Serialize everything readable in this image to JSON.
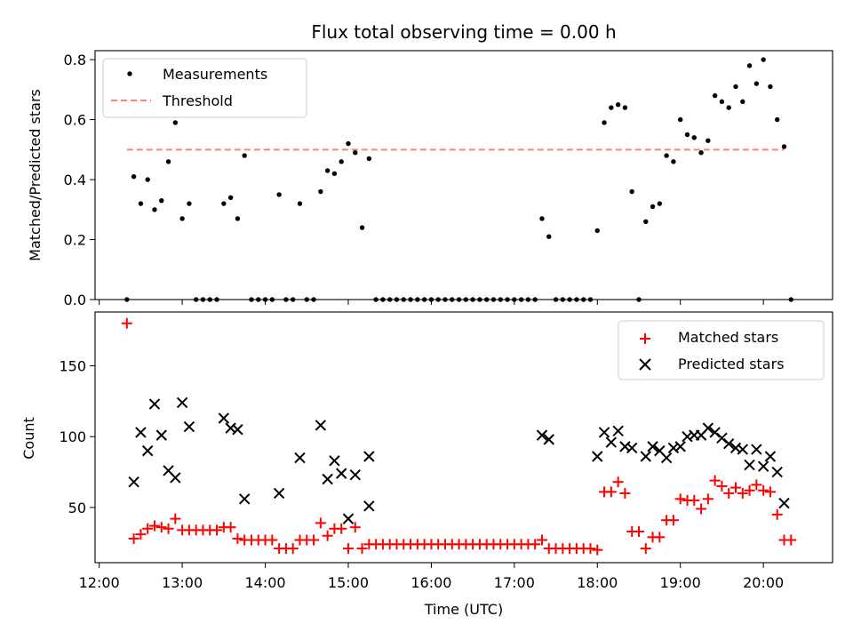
{
  "chart_data": [
    {
      "type": "scatter",
      "title": "Flux total observing time = 0.00 h",
      "xlabel": "",
      "ylabel": "Matched/Predicted stars",
      "xlim": [
        "11:57",
        "20:50"
      ],
      "ylim": [
        0,
        0.83
      ],
      "yticks": [
        0,
        0.2,
        0.4,
        0.6,
        0.8
      ],
      "ytick_labels": [
        "0.0",
        "0.2",
        "0.4",
        "0.6",
        "0.8"
      ],
      "legend_position": "top-left",
      "grid": false,
      "series": [
        {
          "name": "Measurements",
          "color": "#000000",
          "marker": "dot",
          "points": [
            [
              "12:20",
              0.0
            ],
            [
              "12:25",
              0.41
            ],
            [
              "12:30",
              0.32
            ],
            [
              "12:35",
              0.4
            ],
            [
              "12:40",
              0.3
            ],
            [
              "12:45",
              0.33
            ],
            [
              "12:50",
              0.46
            ],
            [
              "12:55",
              0.59
            ],
            [
              "13:00",
              0.27
            ],
            [
              "13:05",
              0.32
            ],
            [
              "13:10",
              0.0
            ],
            [
              "13:15",
              0.0
            ],
            [
              "13:20",
              0.0
            ],
            [
              "13:25",
              0.0
            ],
            [
              "13:30",
              0.32
            ],
            [
              "13:35",
              0.34
            ],
            [
              "13:40",
              0.27
            ],
            [
              "13:45",
              0.48
            ],
            [
              "13:50",
              0.0
            ],
            [
              "13:55",
              0.0
            ],
            [
              "14:00",
              0.0
            ],
            [
              "14:05",
              0.0
            ],
            [
              "14:10",
              0.35
            ],
            [
              "14:15",
              0.0
            ],
            [
              "14:20",
              0.0
            ],
            [
              "14:25",
              0.32
            ],
            [
              "14:30",
              0.0
            ],
            [
              "14:35",
              0.0
            ],
            [
              "14:40",
              0.36
            ],
            [
              "14:45",
              0.43
            ],
            [
              "14:50",
              0.42
            ],
            [
              "14:55",
              0.46
            ],
            [
              "15:00",
              0.52
            ],
            [
              "15:05",
              0.49
            ],
            [
              "15:10",
              0.24
            ],
            [
              "15:15",
              0.47
            ],
            [
              "15:20",
              0.0
            ],
            [
              "15:25",
              0.0
            ],
            [
              "15:30",
              0.0
            ],
            [
              "15:35",
              0.0
            ],
            [
              "15:40",
              0.0
            ],
            [
              "15:45",
              0.0
            ],
            [
              "15:50",
              0.0
            ],
            [
              "15:55",
              0.0
            ],
            [
              "16:00",
              0.0
            ],
            [
              "16:05",
              0.0
            ],
            [
              "16:10",
              0.0
            ],
            [
              "16:15",
              0.0
            ],
            [
              "16:20",
              0.0
            ],
            [
              "16:25",
              0.0
            ],
            [
              "16:30",
              0.0
            ],
            [
              "16:35",
              0.0
            ],
            [
              "16:40",
              0.0
            ],
            [
              "16:45",
              0.0
            ],
            [
              "16:50",
              0.0
            ],
            [
              "16:55",
              0.0
            ],
            [
              "17:00",
              0.0
            ],
            [
              "17:05",
              0.0
            ],
            [
              "17:10",
              0.0
            ],
            [
              "17:15",
              0.0
            ],
            [
              "17:20",
              0.27
            ],
            [
              "17:25",
              0.21
            ],
            [
              "17:30",
              0.0
            ],
            [
              "17:35",
              0.0
            ],
            [
              "17:40",
              0.0
            ],
            [
              "17:45",
              0.0
            ],
            [
              "17:50",
              0.0
            ],
            [
              "17:55",
              0.0
            ],
            [
              "18:00",
              0.23
            ],
            [
              "18:05",
              0.59
            ],
            [
              "18:10",
              0.64
            ],
            [
              "18:15",
              0.65
            ],
            [
              "18:20",
              0.64
            ],
            [
              "18:25",
              0.36
            ],
            [
              "18:30",
              0.0
            ],
            [
              "18:35",
              0.26
            ],
            [
              "18:40",
              0.31
            ],
            [
              "18:45",
              0.32
            ],
            [
              "18:50",
              0.48
            ],
            [
              "18:55",
              0.46
            ],
            [
              "19:00",
              0.6
            ],
            [
              "19:05",
              0.55
            ],
            [
              "19:10",
              0.54
            ],
            [
              "19:15",
              0.49
            ],
            [
              "19:20",
              0.53
            ],
            [
              "19:25",
              0.68
            ],
            [
              "19:30",
              0.66
            ],
            [
              "19:35",
              0.64
            ],
            [
              "19:40",
              0.71
            ],
            [
              "19:45",
              0.66
            ],
            [
              "19:50",
              0.78
            ],
            [
              "19:55",
              0.72
            ],
            [
              "20:00",
              0.8
            ],
            [
              "20:05",
              0.71
            ],
            [
              "20:10",
              0.6
            ],
            [
              "20:15",
              0.51
            ],
            [
              "20:20",
              0.0
            ]
          ]
        },
        {
          "name": "Threshold",
          "color": "#ff8080",
          "style": "dashed",
          "points": [
            [
              "12:20",
              0.5
            ],
            [
              "20:15",
              0.5
            ]
          ]
        }
      ]
    },
    {
      "type": "scatter",
      "title": "",
      "xlabel": "Time (UTC)",
      "ylabel": "Count",
      "xlim": [
        "11:57",
        "20:50"
      ],
      "ylim": [
        11,
        188
      ],
      "yticks": [
        50,
        100,
        150
      ],
      "ytick_labels": [
        "50",
        "100",
        "150"
      ],
      "xticks": [
        "12:00",
        "13:00",
        "14:00",
        "15:00",
        "16:00",
        "17:00",
        "18:00",
        "19:00",
        "20:00"
      ],
      "legend_position": "top-right",
      "grid": false,
      "series": [
        {
          "name": "Matched stars",
          "color": "#ff0000",
          "marker": "plus",
          "points": [
            [
              "12:20",
              180
            ],
            [
              "12:25",
              28
            ],
            [
              "12:30",
              31
            ],
            [
              "12:35",
              35
            ],
            [
              "12:40",
              37
            ],
            [
              "12:45",
              36
            ],
            [
              "12:50",
              35
            ],
            [
              "12:55",
              42
            ],
            [
              "13:00",
              34
            ],
            [
              "13:05",
              34
            ],
            [
              "13:10",
              34
            ],
            [
              "13:15",
              34
            ],
            [
              "13:20",
              34
            ],
            [
              "13:25",
              34
            ],
            [
              "13:30",
              36
            ],
            [
              "13:35",
              36
            ],
            [
              "13:40",
              28
            ],
            [
              "13:45",
              27
            ],
            [
              "13:50",
              27
            ],
            [
              "13:55",
              27
            ],
            [
              "14:00",
              27
            ],
            [
              "14:05",
              27
            ],
            [
              "14:10",
              21
            ],
            [
              "14:15",
              21
            ],
            [
              "14:20",
              21
            ],
            [
              "14:25",
              27
            ],
            [
              "14:30",
              27
            ],
            [
              "14:35",
              27
            ],
            [
              "14:40",
              39
            ],
            [
              "14:45",
              30
            ],
            [
              "14:50",
              35
            ],
            [
              "14:55",
              35
            ],
            [
              "15:00",
              21
            ],
            [
              "15:05",
              36
            ],
            [
              "15:10",
              21
            ],
            [
              "15:15",
              24
            ],
            [
              "15:20",
              24
            ],
            [
              "15:25",
              24
            ],
            [
              "15:30",
              24
            ],
            [
              "15:35",
              24
            ],
            [
              "15:40",
              24
            ],
            [
              "15:45",
              24
            ],
            [
              "15:50",
              24
            ],
            [
              "15:55",
              24
            ],
            [
              "16:00",
              24
            ],
            [
              "16:05",
              24
            ],
            [
              "16:10",
              24
            ],
            [
              "16:15",
              24
            ],
            [
              "16:20",
              24
            ],
            [
              "16:25",
              24
            ],
            [
              "16:30",
              24
            ],
            [
              "16:35",
              24
            ],
            [
              "16:40",
              24
            ],
            [
              "16:45",
              24
            ],
            [
              "16:50",
              24
            ],
            [
              "16:55",
              24
            ],
            [
              "17:00",
              24
            ],
            [
              "17:05",
              24
            ],
            [
              "17:10",
              24
            ],
            [
              "17:15",
              24
            ],
            [
              "17:20",
              27
            ],
            [
              "17:25",
              21
            ],
            [
              "17:30",
              21
            ],
            [
              "17:35",
              21
            ],
            [
              "17:40",
              21
            ],
            [
              "17:45",
              21
            ],
            [
              "17:50",
              21
            ],
            [
              "17:55",
              21
            ],
            [
              "18:00",
              20
            ],
            [
              "18:05",
              61
            ],
            [
              "18:10",
              61
            ],
            [
              "18:15",
              68
            ],
            [
              "18:20",
              60
            ],
            [
              "18:25",
              33
            ],
            [
              "18:30",
              33
            ],
            [
              "18:35",
              21
            ],
            [
              "18:40",
              29
            ],
            [
              "18:45",
              29
            ],
            [
              "18:50",
              41
            ],
            [
              "18:55",
              41
            ],
            [
              "19:00",
              56
            ],
            [
              "19:05",
              55
            ],
            [
              "19:10",
              55
            ],
            [
              "19:15",
              49
            ],
            [
              "19:20",
              56
            ],
            [
              "19:25",
              69
            ],
            [
              "19:30",
              65
            ],
            [
              "19:35",
              60
            ],
            [
              "19:40",
              64
            ],
            [
              "19:45",
              60
            ],
            [
              "19:50",
              62
            ],
            [
              "19:55",
              66
            ],
            [
              "20:00",
              62
            ],
            [
              "20:05",
              61
            ],
            [
              "20:10",
              45
            ],
            [
              "20:15",
              27
            ],
            [
              "20:20",
              27
            ]
          ]
        },
        {
          "name": "Predicted stars",
          "color": "#000000",
          "marker": "x",
          "points": [
            [
              "12:25",
              68
            ],
            [
              "12:30",
              103
            ],
            [
              "12:35",
              90
            ],
            [
              "12:40",
              123
            ],
            [
              "12:45",
              101
            ],
            [
              "12:50",
              76
            ],
            [
              "12:55",
              71
            ],
            [
              "13:00",
              124
            ],
            [
              "13:05",
              107
            ],
            [
              "13:30",
              113
            ],
            [
              "13:35",
              106
            ],
            [
              "13:40",
              105
            ],
            [
              "13:45",
              56
            ],
            [
              "14:10",
              60
            ],
            [
              "14:25",
              85
            ],
            [
              "14:40",
              108
            ],
            [
              "14:45",
              70
            ],
            [
              "14:50",
              83
            ],
            [
              "14:55",
              74
            ],
            [
              "15:00",
              42
            ],
            [
              "15:05",
              73
            ],
            [
              "15:15",
              86
            ],
            [
              "15:15",
              51
            ],
            [
              "17:20",
              101
            ],
            [
              "17:25",
              98
            ],
            [
              "18:00",
              86
            ],
            [
              "18:05",
              103
            ],
            [
              "18:10",
              96
            ],
            [
              "18:15",
              104
            ],
            [
              "18:20",
              93
            ],
            [
              "18:25",
              92
            ],
            [
              "18:35",
              86
            ],
            [
              "18:40",
              93
            ],
            [
              "18:45",
              90
            ],
            [
              "18:50",
              85
            ],
            [
              "18:55",
              92
            ],
            [
              "19:00",
              93
            ],
            [
              "19:05",
              100
            ],
            [
              "19:10",
              101
            ],
            [
              "19:15",
              101
            ],
            [
              "19:20",
              106
            ],
            [
              "19:25",
              103
            ],
            [
              "19:30",
              99
            ],
            [
              "19:35",
              95
            ],
            [
              "19:40",
              92
            ],
            [
              "19:45",
              91
            ],
            [
              "19:50",
              80
            ],
            [
              "19:55",
              91
            ],
            [
              "20:00",
              79
            ],
            [
              "20:05",
              86
            ],
            [
              "20:10",
              75
            ],
            [
              "20:15",
              53
            ]
          ]
        }
      ]
    }
  ]
}
